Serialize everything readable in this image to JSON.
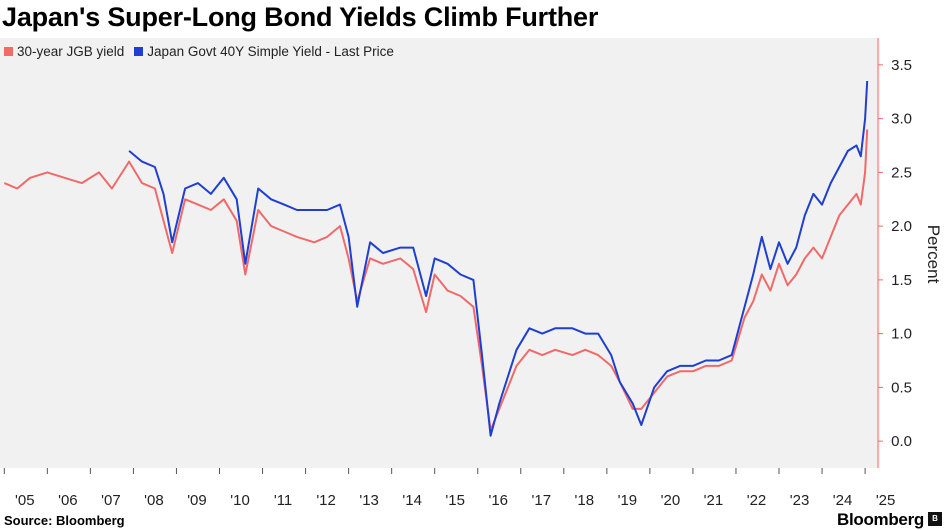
{
  "chart_data": {
    "type": "line",
    "title": "Japan's Super-Long Bond Yields Climb Further",
    "ylabel": "Percent",
    "ylim": [
      -0.25,
      3.75
    ],
    "yticks": [
      "0.0",
      "0.5",
      "1.0",
      "1.5",
      "2.0",
      "2.5",
      "3.0",
      "3.5"
    ],
    "xlim": [
      2004.9,
      2025.3
    ],
    "xticks": [
      "'05",
      "'06",
      "'07",
      "'08",
      "'09",
      "'10",
      "'11",
      "'12",
      "'13",
      "'14",
      "'15",
      "'16",
      "'17",
      "'18",
      "'19",
      "'20",
      "'21",
      "'22",
      "'23",
      "'24",
      "'25"
    ],
    "legend_position": "top-left",
    "grid": false,
    "series": [
      {
        "name": "30-year JGB yield",
        "color": "#f06a6a",
        "x": [
          2005.0,
          2005.3,
          2005.6,
          2006.0,
          2006.4,
          2006.8,
          2007.2,
          2007.5,
          2007.9,
          2008.2,
          2008.5,
          2008.7,
          2008.9,
          2009.2,
          2009.5,
          2009.8,
          2010.1,
          2010.4,
          2010.6,
          2010.9,
          2011.2,
          2011.5,
          2011.8,
          2012.2,
          2012.5,
          2012.8,
          2013.0,
          2013.2,
          2013.5,
          2013.8,
          2014.2,
          2014.5,
          2014.8,
          2015.0,
          2015.3,
          2015.6,
          2015.9,
          2016.1,
          2016.3,
          2016.5,
          2016.7,
          2016.9,
          2017.2,
          2017.5,
          2017.8,
          2018.2,
          2018.5,
          2018.8,
          2019.1,
          2019.3,
          2019.6,
          2019.8,
          2020.1,
          2020.4,
          2020.7,
          2021.0,
          2021.3,
          2021.6,
          2021.9,
          2022.2,
          2022.4,
          2022.6,
          2022.8,
          2023.0,
          2023.2,
          2023.4,
          2023.6,
          2023.8,
          2024.0,
          2024.2,
          2024.4,
          2024.6,
          2024.8,
          2024.9,
          2025.0,
          2025.05
        ],
        "values": [
          2.4,
          2.35,
          2.45,
          2.5,
          2.45,
          2.4,
          2.5,
          2.35,
          2.6,
          2.4,
          2.35,
          2.05,
          1.75,
          2.25,
          2.2,
          2.15,
          2.25,
          2.05,
          1.55,
          2.15,
          2.0,
          1.95,
          1.9,
          1.85,
          1.9,
          2.0,
          1.7,
          1.3,
          1.7,
          1.65,
          1.7,
          1.6,
          1.2,
          1.55,
          1.4,
          1.35,
          1.25,
          0.7,
          0.1,
          0.3,
          0.5,
          0.7,
          0.85,
          0.8,
          0.85,
          0.8,
          0.85,
          0.8,
          0.7,
          0.55,
          0.3,
          0.3,
          0.45,
          0.6,
          0.65,
          0.65,
          0.7,
          0.7,
          0.75,
          1.15,
          1.3,
          1.55,
          1.4,
          1.65,
          1.45,
          1.55,
          1.7,
          1.8,
          1.7,
          1.9,
          2.1,
          2.2,
          2.3,
          2.2,
          2.5,
          2.9
        ]
      },
      {
        "name": "Japan Govt 40Y Simple Yield - Last Price",
        "color": "#1f3fd0",
        "x": [
          2007.9,
          2008.2,
          2008.5,
          2008.7,
          2008.9,
          2009.2,
          2009.5,
          2009.8,
          2010.1,
          2010.4,
          2010.6,
          2010.9,
          2011.2,
          2011.5,
          2011.8,
          2012.2,
          2012.5,
          2012.8,
          2013.0,
          2013.2,
          2013.5,
          2013.8,
          2014.2,
          2014.5,
          2014.8,
          2015.0,
          2015.3,
          2015.6,
          2015.9,
          2016.1,
          2016.3,
          2016.5,
          2016.7,
          2016.9,
          2017.2,
          2017.5,
          2017.8,
          2018.2,
          2018.5,
          2018.8,
          2019.1,
          2019.3,
          2019.6,
          2019.8,
          2020.1,
          2020.4,
          2020.7,
          2021.0,
          2021.3,
          2021.6,
          2021.9,
          2022.2,
          2022.4,
          2022.6,
          2022.8,
          2023.0,
          2023.2,
          2023.4,
          2023.6,
          2023.8,
          2024.0,
          2024.2,
          2024.4,
          2024.6,
          2024.8,
          2024.9,
          2025.0,
          2025.05
        ],
        "values": [
          2.7,
          2.6,
          2.55,
          2.3,
          1.85,
          2.35,
          2.4,
          2.3,
          2.45,
          2.25,
          1.65,
          2.35,
          2.25,
          2.2,
          2.15,
          2.15,
          2.15,
          2.2,
          1.9,
          1.25,
          1.85,
          1.75,
          1.8,
          1.8,
          1.35,
          1.7,
          1.65,
          1.55,
          1.5,
          0.8,
          0.05,
          0.35,
          0.6,
          0.85,
          1.05,
          1.0,
          1.05,
          1.05,
          1.0,
          1.0,
          0.8,
          0.55,
          0.35,
          0.15,
          0.5,
          0.65,
          0.7,
          0.7,
          0.75,
          0.75,
          0.8,
          1.25,
          1.55,
          1.9,
          1.6,
          1.85,
          1.65,
          1.8,
          2.1,
          2.3,
          2.2,
          2.4,
          2.55,
          2.7,
          2.75,
          2.65,
          3.0,
          3.35
        ]
      }
    ]
  },
  "footer": {
    "source": "Source: Bloomberg",
    "brand": "Bloomberg"
  }
}
